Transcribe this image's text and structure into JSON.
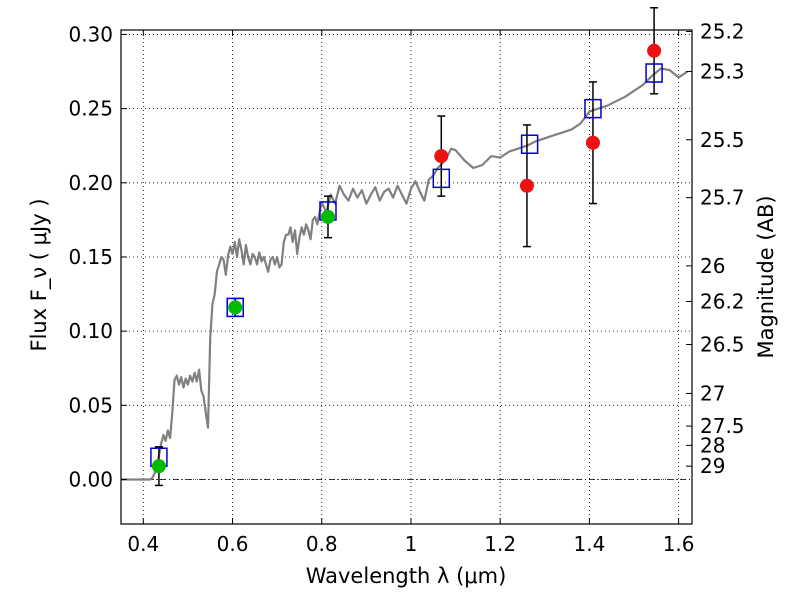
{
  "chart_data": {
    "type": "scatter",
    "xlabel": "Wavelength  λ (μm)",
    "ylabel": "Flux  F_ν  ( μJy )",
    "y2label": "Magnitude (AB)",
    "xlim": [
      0.35,
      1.63
    ],
    "ylim": [
      -0.03,
      0.303
    ],
    "grid": true,
    "x_ticks": [
      0.4,
      0.6,
      0.8,
      1.0,
      1.2,
      1.4,
      1.6
    ],
    "x_tick_labels": [
      "0.4",
      "0.6",
      "0.8",
      "1",
      "1.2",
      "1.4",
      "1.6"
    ],
    "y_ticks": [
      0.0,
      0.05,
      0.1,
      0.15,
      0.2,
      0.25,
      0.3
    ],
    "y_tick_labels": [
      "0.00",
      "0.05",
      "0.10",
      "0.15",
      "0.20",
      "0.25",
      "0.30"
    ],
    "mag_ticks": [
      {
        "label": "25.2",
        "flux": 0.302
      },
      {
        "label": "25.3",
        "flux": 0.275
      },
      {
        "label": "25.5",
        "flux": 0.229
      },
      {
        "label": "25.7",
        "flux": 0.19
      },
      {
        "label": "26",
        "flux": 0.144
      },
      {
        "label": "26.2",
        "flux": 0.12
      },
      {
        "label": "26.5",
        "flux": 0.091
      },
      {
        "label": "27",
        "flux": 0.058
      },
      {
        "label": "27.5",
        "flux": 0.036
      },
      {
        "label": "28",
        "flux": 0.023
      },
      {
        "label": "29",
        "flux": 0.009
      }
    ],
    "series": [
      {
        "kind": "model_spectrum",
        "color": "#808080",
        "x": [
          0.35,
          0.37,
          0.39,
          0.4,
          0.41,
          0.415,
          0.42,
          0.425,
          0.43,
          0.435,
          0.44,
          0.445,
          0.45,
          0.455,
          0.46,
          0.465,
          0.47,
          0.475,
          0.48,
          0.485,
          0.49,
          0.495,
          0.5,
          0.505,
          0.51,
          0.515,
          0.52,
          0.525,
          0.53,
          0.535,
          0.54,
          0.545,
          0.55,
          0.555,
          0.56,
          0.565,
          0.57,
          0.575,
          0.58,
          0.585,
          0.59,
          0.595,
          0.6,
          0.605,
          0.61,
          0.615,
          0.62,
          0.625,
          0.63,
          0.635,
          0.64,
          0.645,
          0.65,
          0.655,
          0.66,
          0.665,
          0.67,
          0.675,
          0.68,
          0.685,
          0.69,
          0.695,
          0.7,
          0.705,
          0.71,
          0.715,
          0.72,
          0.725,
          0.73,
          0.735,
          0.74,
          0.745,
          0.75,
          0.755,
          0.76,
          0.765,
          0.77,
          0.775,
          0.78,
          0.785,
          0.79,
          0.795,
          0.8,
          0.81,
          0.82,
          0.83,
          0.84,
          0.85,
          0.86,
          0.87,
          0.88,
          0.89,
          0.9,
          0.91,
          0.92,
          0.93,
          0.94,
          0.95,
          0.96,
          0.97,
          0.98,
          0.99,
          1.0,
          1.01,
          1.02,
          1.03,
          1.04,
          1.05,
          1.06,
          1.07,
          1.08,
          1.09,
          1.1,
          1.12,
          1.14,
          1.16,
          1.18,
          1.2,
          1.22,
          1.24,
          1.26,
          1.28,
          1.3,
          1.32,
          1.34,
          1.36,
          1.38,
          1.4,
          1.42,
          1.44,
          1.46,
          1.48,
          1.5,
          1.52,
          1.54,
          1.56,
          1.58,
          1.6,
          1.62
        ],
        "y": [
          0.0,
          0.0,
          0.0,
          0.0,
          0.0,
          0.0,
          0.001,
          0.004,
          0.009,
          0.016,
          0.024,
          0.03,
          0.026,
          0.033,
          0.028,
          0.045,
          0.067,
          0.07,
          0.064,
          0.069,
          0.062,
          0.068,
          0.064,
          0.07,
          0.066,
          0.072,
          0.066,
          0.074,
          0.06,
          0.056,
          0.045,
          0.035,
          0.095,
          0.118,
          0.125,
          0.14,
          0.145,
          0.15,
          0.148,
          0.138,
          0.151,
          0.157,
          0.152,
          0.16,
          0.15,
          0.162,
          0.155,
          0.145,
          0.158,
          0.15,
          0.145,
          0.152,
          0.15,
          0.145,
          0.153,
          0.147,
          0.15,
          0.145,
          0.14,
          0.148,
          0.15,
          0.145,
          0.15,
          0.143,
          0.145,
          0.16,
          0.165,
          0.165,
          0.17,
          0.16,
          0.168,
          0.152,
          0.163,
          0.17,
          0.165,
          0.172,
          0.168,
          0.162,
          0.175,
          0.177,
          0.172,
          0.18,
          0.187,
          0.18,
          0.192,
          0.186,
          0.198,
          0.192,
          0.188,
          0.196,
          0.19,
          0.195,
          0.186,
          0.192,
          0.197,
          0.188,
          0.194,
          0.196,
          0.19,
          0.198,
          0.192,
          0.186,
          0.196,
          0.201,
          0.194,
          0.188,
          0.202,
          0.205,
          0.21,
          0.213,
          0.217,
          0.223,
          0.222,
          0.215,
          0.21,
          0.212,
          0.218,
          0.217,
          0.221,
          0.223,
          0.225,
          0.228,
          0.23,
          0.232,
          0.234,
          0.236,
          0.24,
          0.248,
          0.25,
          0.252,
          0.255,
          0.258,
          0.262,
          0.266,
          0.272,
          0.277,
          0.276,
          0.271,
          0.275
        ]
      },
      {
        "kind": "model_photometry",
        "marker": "open-square",
        "color": "#0000cc",
        "x": [
          0.435,
          0.606,
          0.814,
          1.068,
          1.266,
          1.408,
          1.545
        ],
        "y": [
          0.015,
          0.116,
          0.181,
          0.203,
          0.226,
          0.25,
          0.274
        ]
      },
      {
        "kind": "observed_detections",
        "marker": "filled-circle",
        "color": "#00bb00",
        "x": [
          0.435,
          0.606,
          0.814
        ],
        "y": [
          0.009,
          0.116,
          0.177
        ],
        "yerr": [
          0.013,
          0.006,
          0.014
        ]
      },
      {
        "kind": "observed_upper",
        "marker": "filled-circle",
        "color": "#ee1111",
        "x": [
          1.068,
          1.26,
          1.408,
          1.545
        ],
        "y": [
          0.218,
          0.198,
          0.227,
          0.289
        ],
        "yerr_low": [
          0.027,
          0.041,
          0.041,
          0.029
        ],
        "yerr_high": [
          0.027,
          0.041,
          0.041,
          0.029
        ]
      }
    ]
  }
}
